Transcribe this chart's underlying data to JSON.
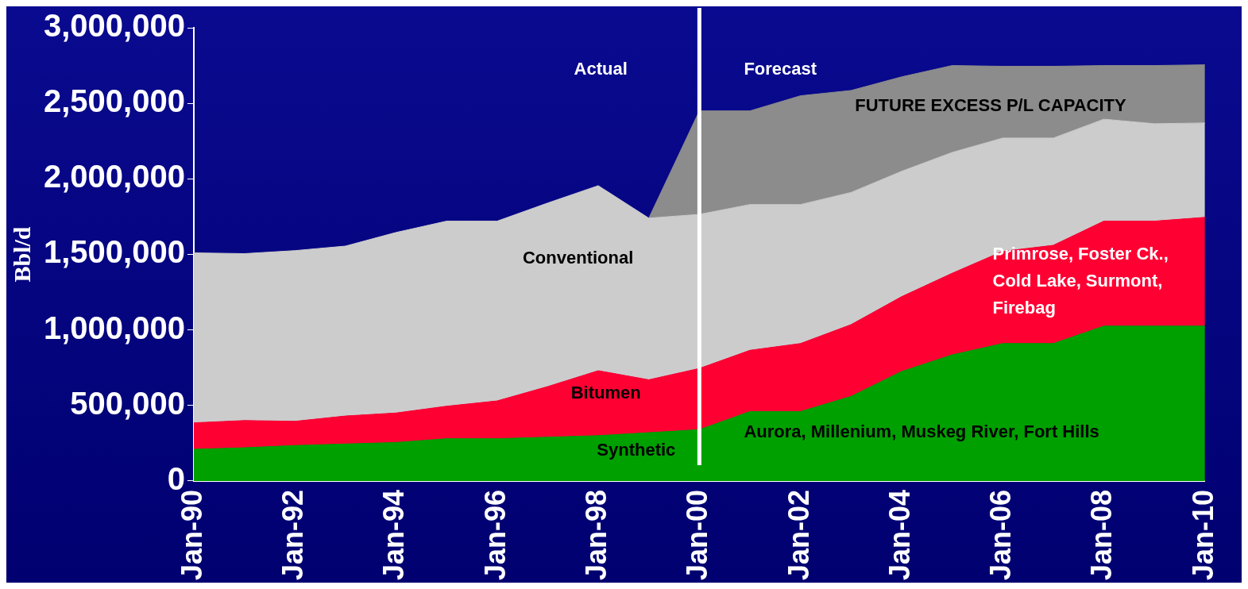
{
  "chart_data": {
    "type": "area",
    "stacked": true,
    "ylabel": "Bbl/d",
    "categories": [
      "Jan-90",
      null,
      "Jan-92",
      null,
      "Jan-94",
      null,
      "Jan-96",
      null,
      "Jan-98",
      null,
      "Jan-00",
      null,
      "Jan-02",
      null,
      "Jan-04",
      null,
      "Jan-06",
      null,
      "Jan-08",
      null,
      "Jan-10"
    ],
    "series": [
      {
        "name": "Synthetic",
        "color": "#00a000",
        "values": [
          210000,
          220000,
          235000,
          245000,
          255000,
          280000,
          280000,
          290000,
          300000,
          320000,
          340000,
          460000,
          460000,
          560000,
          725000,
          835000,
          910000,
          910000,
          1025000,
          1025000,
          1025000
        ]
      },
      {
        "name": "Bitumen",
        "color": "#ff0033",
        "values": [
          175000,
          180000,
          160000,
          185000,
          195000,
          215000,
          250000,
          335000,
          430000,
          350000,
          405000,
          405000,
          450000,
          475000,
          495000,
          540000,
          610000,
          650000,
          695000,
          695000,
          720000
        ]
      },
      {
        "name": "Conventional",
        "color": "#cccccc",
        "values": [
          1125000,
          1105000,
          1130000,
          1125000,
          1195000,
          1225000,
          1190000,
          1215000,
          1225000,
          1070000,
          1020000,
          965000,
          920000,
          875000,
          830000,
          800000,
          750000,
          710000,
          675000,
          645000,
          625000
        ]
      },
      {
        "name": "FUTURE EXCESS P/L CAPACITY",
        "color": "#8c8c8c",
        "values": [
          null,
          null,
          null,
          null,
          null,
          null,
          null,
          null,
          null,
          0,
          685000,
          620000,
          720000,
          675000,
          625000,
          575000,
          475000,
          475000,
          355000,
          385000,
          385000
        ]
      }
    ],
    "ylim": [
      0,
      3000000
    ],
    "yticks": [
      {
        "value": 0,
        "label": "0"
      },
      {
        "value": 500000,
        "label": "500,000"
      },
      {
        "value": 1000000,
        "label": "1,000,000"
      },
      {
        "value": 1500000,
        "label": "1,500,000"
      },
      {
        "value": 2000000,
        "label": "2,000,000"
      },
      {
        "value": 2500000,
        "label": "2,500,000"
      },
      {
        "value": 3000000,
        "label": "3,000,000"
      }
    ],
    "ref_lines": [
      {
        "axis": "x",
        "value": "Jan-00",
        "color": "#ffffff"
      }
    ],
    "annotations": [
      "Actual",
      "Forecast",
      "Aurora, Millenium, Muskeg River, Fort Hills",
      "Primrose, Foster Ck., Cold Lake, Surmont, Firebag"
    ],
    "grid": false,
    "legend": false
  }
}
